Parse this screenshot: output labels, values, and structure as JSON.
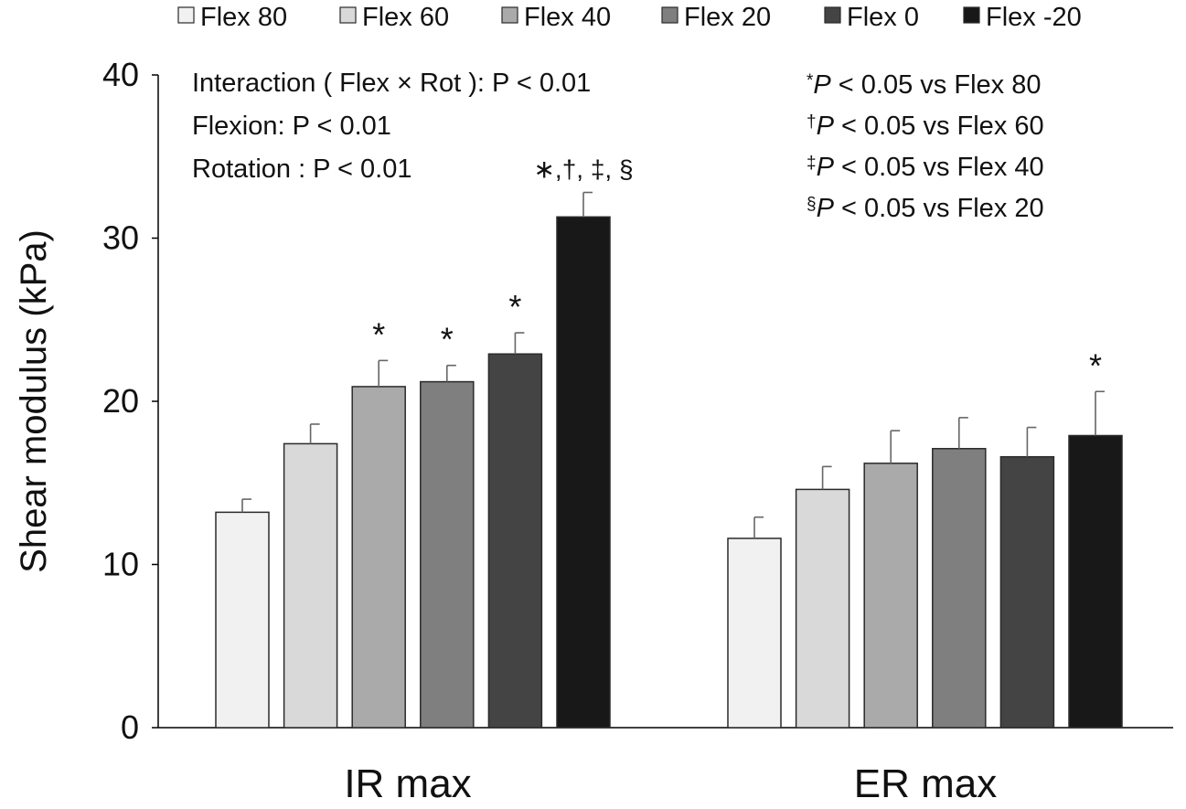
{
  "chart_data": {
    "type": "bar",
    "title": "",
    "xlabel": "",
    "ylabel": "Shear modulus (kPa)",
    "ylim": [
      0,
      40
    ],
    "yticks": [
      0,
      10,
      20,
      30,
      40
    ],
    "grid": false,
    "legend_position": "top",
    "categories": [
      "IR max",
      "ER max"
    ],
    "series": [
      {
        "name": "Flex 80",
        "color": "#f1f1f1",
        "values": [
          13.2,
          11.6
        ],
        "errors": [
          0.8,
          1.3
        ],
        "annotations": [
          "",
          ""
        ]
      },
      {
        "name": "Flex 60",
        "color": "#d9d9d9",
        "values": [
          17.4,
          14.6
        ],
        "errors": [
          1.2,
          1.4
        ],
        "annotations": [
          "",
          ""
        ]
      },
      {
        "name": "Flex 40",
        "color": "#aaaaaa",
        "values": [
          20.9,
          16.2
        ],
        "errors": [
          1.6,
          2.0
        ],
        "annotations": [
          "*",
          ""
        ]
      },
      {
        "name": "Flex 20",
        "color": "#7f7f7f",
        "values": [
          21.2,
          17.1
        ],
        "errors": [
          1.0,
          1.9
        ],
        "annotations": [
          "*",
          ""
        ]
      },
      {
        "name": "Flex 0",
        "color": "#444444",
        "values": [
          22.9,
          16.6
        ],
        "errors": [
          1.3,
          1.8
        ],
        "annotations": [
          "*",
          ""
        ]
      },
      {
        "name": "Flex -20",
        "color": "#181818",
        "values": [
          31.3,
          17.9
        ],
        "errors": [
          1.5,
          2.7
        ],
        "annotations": [
          "∗,†, ‡, §",
          "*"
        ]
      }
    ],
    "stats_text": [
      "Interaction ( Flex × Rot ): P < 0.01",
      "Flexion: P < 0.01",
      "Rotation : P < 0.01"
    ],
    "significance_key": [
      {
        "symbol": "*",
        "text": " < 0.05 vs Flex 80"
      },
      {
        "symbol": "†",
        "text": " < 0.05 vs Flex 60"
      },
      {
        "symbol": "‡",
        "text": " < 0.05 vs Flex 40"
      },
      {
        "symbol": "§",
        "text": " < 0.05 vs Flex 20"
      }
    ],
    "significance_p_label": "P"
  }
}
